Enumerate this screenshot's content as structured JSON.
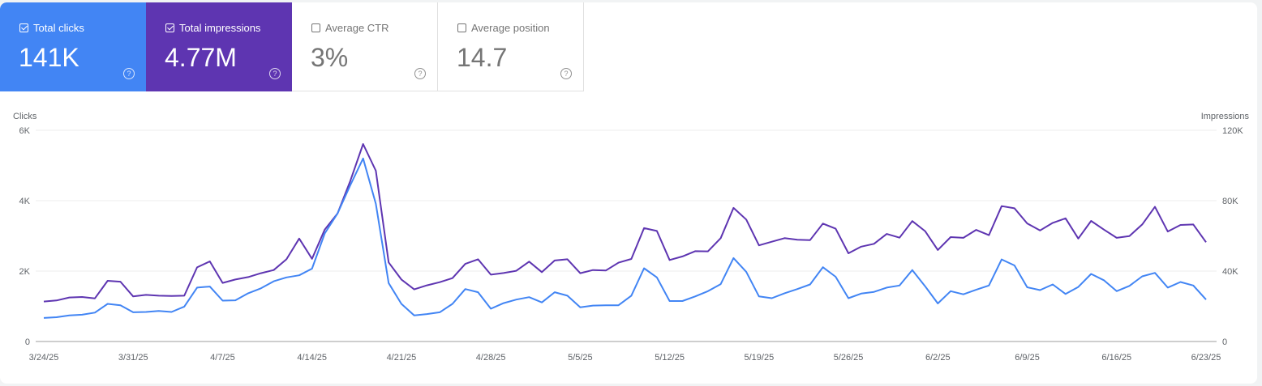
{
  "metrics": [
    {
      "label": "Total clicks",
      "value": "141K",
      "checked": true,
      "color": "#4285f4"
    },
    {
      "label": "Total impressions",
      "value": "4.77M",
      "checked": true,
      "color": "#5e35b1"
    },
    {
      "label": "Average CTR",
      "value": "3%",
      "checked": false
    },
    {
      "label": "Average position",
      "value": "14.7",
      "checked": false
    }
  ],
  "help_icon": "?",
  "chart_data": {
    "type": "line",
    "left_axis_label": "Clicks",
    "right_axis_label": "Impressions",
    "left_ylim": [
      0,
      6000
    ],
    "right_ylim": [
      0,
      120000
    ],
    "left_ticks": [
      "0",
      "2K",
      "4K",
      "6K"
    ],
    "right_ticks": [
      "0",
      "40K",
      "80K",
      "120K"
    ],
    "x_tick_labels": [
      "3/24/25",
      "3/31/25",
      "4/7/25",
      "4/14/25",
      "4/21/25",
      "4/28/25",
      "5/5/25",
      "5/12/25",
      "5/19/25",
      "5/26/25",
      "6/2/25",
      "6/9/25",
      "6/16/25",
      "6/23/25"
    ],
    "grid": true,
    "legend": "none",
    "x": [
      "3/24/25",
      "3/25/25",
      "3/26/25",
      "3/27/25",
      "3/28/25",
      "3/29/25",
      "3/30/25",
      "3/31/25",
      "4/1/25",
      "4/2/25",
      "4/3/25",
      "4/4/25",
      "4/5/25",
      "4/6/25",
      "4/7/25",
      "4/8/25",
      "4/9/25",
      "4/10/25",
      "4/11/25",
      "4/12/25",
      "4/13/25",
      "4/14/25",
      "4/15/25",
      "4/16/25",
      "4/17/25",
      "4/18/25",
      "4/19/25",
      "4/20/25",
      "4/21/25",
      "4/22/25",
      "4/23/25",
      "4/24/25",
      "4/25/25",
      "4/26/25",
      "4/27/25",
      "4/28/25",
      "4/29/25",
      "4/30/25",
      "5/1/25",
      "5/2/25",
      "5/3/25",
      "5/4/25",
      "5/5/25",
      "5/6/25",
      "5/7/25",
      "5/8/25",
      "5/9/25",
      "5/10/25",
      "5/11/25",
      "5/12/25",
      "5/13/25",
      "5/14/25",
      "5/15/25",
      "5/16/25",
      "5/17/25",
      "5/18/25",
      "5/19/25",
      "5/20/25",
      "5/21/25",
      "5/22/25",
      "5/23/25",
      "5/24/25",
      "5/25/25",
      "5/26/25",
      "5/27/25",
      "5/28/25",
      "5/29/25",
      "5/30/25",
      "5/31/25",
      "6/1/25",
      "6/2/25",
      "6/3/25",
      "6/4/25",
      "6/5/25",
      "6/6/25",
      "6/7/25",
      "6/8/25",
      "6/9/25",
      "6/10/25",
      "6/11/25",
      "6/12/25",
      "6/13/25",
      "6/14/25",
      "6/15/25",
      "6/16/25",
      "6/17/25",
      "6/18/25",
      "6/19/25",
      "6/20/25",
      "6/21/25",
      "6/22/25",
      "6/23/25"
    ],
    "series": [
      {
        "name": "Clicks",
        "axis": "left",
        "color": "#4285f4",
        "values": [
          670,
          690,
          740,
          760,
          820,
          1070,
          1030,
          830,
          840,
          870,
          840,
          990,
          1530,
          1560,
          1160,
          1170,
          1370,
          1510,
          1710,
          1820,
          1880,
          2070,
          3070,
          3640,
          4440,
          5200,
          3910,
          1660,
          1070,
          740,
          780,
          830,
          1070,
          1490,
          1400,
          930,
          1090,
          1190,
          1260,
          1110,
          1400,
          1300,
          970,
          1020,
          1030,
          1030,
          1300,
          2080,
          1820,
          1150,
          1150,
          1280,
          1430,
          1630,
          2370,
          1980,
          1280,
          1230,
          1370,
          1490,
          1620,
          2110,
          1840,
          1230,
          1360,
          1410,
          1530,
          1590,
          2030,
          1570,
          1080,
          1430,
          1340,
          1470,
          1590,
          2330,
          2160,
          1540,
          1460,
          1620,
          1350,
          1550,
          1920,
          1740,
          1430,
          1580,
          1850,
          1950,
          1530,
          1690,
          1590,
          1190
        ]
      },
      {
        "name": "Impressions",
        "axis": "right",
        "color": "#5e35b1",
        "values": [
          22700,
          23300,
          25000,
          25300,
          24500,
          34500,
          34000,
          25600,
          26500,
          26000,
          25900,
          26000,
          42100,
          45500,
          33300,
          35200,
          36600,
          38800,
          40600,
          46700,
          58500,
          47000,
          63600,
          72800,
          91200,
          112200,
          97000,
          44900,
          35200,
          29600,
          31900,
          33700,
          36000,
          44100,
          46700,
          38000,
          38900,
          40200,
          45400,
          39400,
          46000,
          46700,
          38800,
          40600,
          40300,
          44800,
          46900,
          64400,
          62800,
          46300,
          48300,
          51300,
          51200,
          58700,
          75900,
          69300,
          54600,
          56700,
          58700,
          57800,
          57600,
          67000,
          64100,
          50100,
          53900,
          55500,
          61100,
          59000,
          68400,
          62700,
          52000,
          59300,
          58900,
          63400,
          60400,
          76900,
          75700,
          67100,
          63100,
          67400,
          70000,
          58500,
          68500,
          63600,
          58900,
          59900,
          66500,
          76500,
          62500,
          66200,
          66500,
          56400
        ]
      }
    ]
  }
}
